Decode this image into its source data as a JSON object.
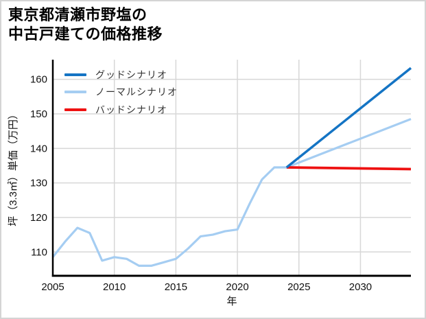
{
  "title": {
    "line1": "東京都清瀬市野塩の",
    "line2": "中古戸建ての価格推移"
  },
  "legend": {
    "items": [
      {
        "key": "good",
        "label": "グッドシナリオ",
        "color": "#1474c4"
      },
      {
        "key": "normal",
        "label": "ノーマルシナリオ",
        "color": "#a5cdf2"
      },
      {
        "key": "bad",
        "label": "バッドシナリオ",
        "color": "#ee1111"
      }
    ]
  },
  "chart_data": {
    "type": "line",
    "title": "東京都清瀬市野塩の中古戸建ての価格推移",
    "xlabel": "年",
    "ylabel": "坪（3.3㎡）単価（万円）",
    "xlim": [
      2005,
      2034.1
    ],
    "ylim": [
      103.1,
      165.7
    ],
    "xticks": [
      2005,
      2010,
      2015,
      2020,
      2025,
      2030
    ],
    "yticks": [
      110,
      120,
      130,
      140,
      150,
      160
    ],
    "grid": true,
    "grid_color": "#d7d7d7",
    "legend_position": "upper-left-inside",
    "series": [
      {
        "key": "normal",
        "name": "ノーマルシナリオ",
        "color": "#a5cdf2",
        "width": 3.2,
        "x": [
          2005,
          2006,
          2007,
          2008,
          2009,
          2010,
          2011,
          2012,
          2013,
          2014,
          2015,
          2016,
          2017,
          2018,
          2019,
          2020,
          2021,
          2022,
          2023,
          2024,
          2034.1
        ],
        "y": [
          108.5,
          113,
          117,
          115.5,
          107.5,
          108.5,
          108,
          106,
          106,
          107,
          108,
          111,
          114.5,
          115,
          116,
          116.5,
          124,
          131,
          134.5,
          134.5,
          148.5
        ]
      },
      {
        "key": "bad",
        "name": "バッドシナリオ",
        "color": "#ee1111",
        "width": 3.8,
        "x": [
          2024,
          2034.1
        ],
        "y": [
          134.5,
          134.0
        ]
      },
      {
        "key": "good",
        "name": "グッドシナリオ",
        "color": "#1474c4",
        "width": 3.5,
        "x": [
          2024,
          2034.1
        ],
        "y": [
          134.5,
          163.3
        ]
      }
    ]
  }
}
